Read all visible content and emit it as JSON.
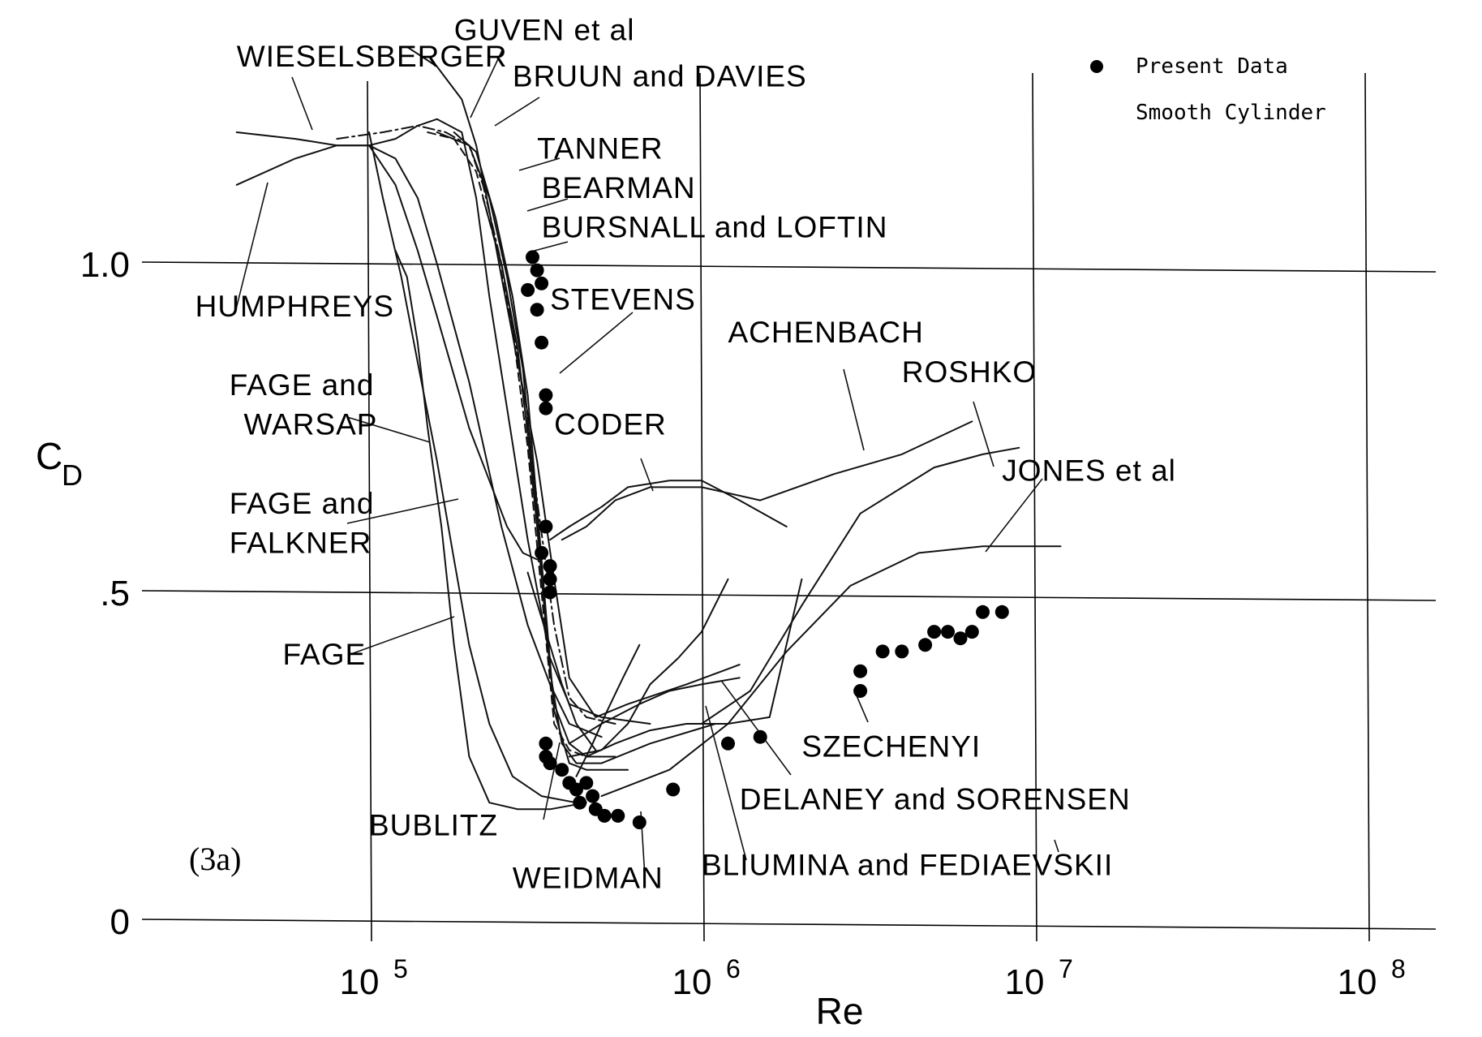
{
  "chart_data": {
    "type": "line",
    "figure_tag": "(3a)",
    "xlabel": "Re",
    "ylabel": "C",
    "ylabel_sub": "D",
    "x_scale": "log",
    "xlim": [
      13000,
      200000000
    ],
    "ylim": [
      -0.02,
      1.38
    ],
    "xticks": [
      {
        "value": 100000,
        "base": "10",
        "exp": "5"
      },
      {
        "value": 1000000,
        "base": "10",
        "exp": "6"
      },
      {
        "value": 10000000,
        "base": "10",
        "exp": "7"
      },
      {
        "value": 100000000,
        "base": "10",
        "exp": "8"
      }
    ],
    "yticks": [
      {
        "value": 0,
        "label": "0"
      },
      {
        "value": 0.5,
        "label": ".5"
      },
      {
        "value": 1.0,
        "label": "1.0"
      }
    ],
    "grid": true,
    "legend": {
      "placement": "top-right",
      "entries": [
        {
          "label": "Present Data",
          "marker": "filled-circle"
        },
        {
          "label": "Smooth Cylinder",
          "marker": "none"
        }
      ]
    },
    "present_data": {
      "x": [
        310000,
        320000,
        330000,
        300000,
        320000,
        330000,
        340000,
        340000,
        340000,
        330000,
        350000,
        350000,
        350000,
        340000,
        340000,
        350000,
        380000,
        400000,
        420000,
        450000,
        430000,
        470000,
        480000,
        510000,
        560000,
        650000,
        820000,
        1200000,
        1500000,
        3000000,
        3000000,
        3500000,
        4000000,
        4700000,
        5000000,
        5500000,
        6000000,
        6500000,
        7000000,
        8000000
      ],
      "y": [
        1.01,
        0.99,
        0.97,
        0.96,
        0.93,
        0.88,
        0.8,
        0.78,
        0.6,
        0.56,
        0.54,
        0.52,
        0.5,
        0.27,
        0.25,
        0.24,
        0.23,
        0.21,
        0.2,
        0.21,
        0.18,
        0.19,
        0.17,
        0.16,
        0.16,
        0.15,
        0.2,
        0.27,
        0.28,
        0.35,
        0.38,
        0.41,
        0.41,
        0.42,
        0.44,
        0.44,
        0.43,
        0.44,
        0.47,
        0.47
      ]
    },
    "series": [
      {
        "name": "WIESELSBERGER",
        "style": "solid",
        "x": [
          40000,
          60000,
          80000,
          100000,
          120000,
          140000,
          160000,
          190000,
          210000,
          230000,
          260000,
          300000,
          350000,
          400000,
          500000,
          700000
        ],
        "y": [
          1.2,
          1.19,
          1.18,
          1.18,
          1.19,
          1.21,
          1.22,
          1.2,
          1.1,
          0.95,
          0.78,
          0.58,
          0.4,
          0.33,
          0.31,
          0.3
        ]
      },
      {
        "name": "GUVEN et al",
        "style": "solid",
        "x": [
          130000,
          160000,
          190000,
          210000,
          230000,
          250000,
          280000,
          320000,
          360000,
          400000,
          480000,
          600000,
          900000,
          1300000
        ],
        "y": [
          1.33,
          1.3,
          1.25,
          1.18,
          1.08,
          0.98,
          0.85,
          0.7,
          0.52,
          0.37,
          0.31,
          0.33,
          0.36,
          0.39
        ]
      },
      {
        "name": "BRUUN and DAVIES",
        "style": "dashdot",
        "x": [
          80000,
          110000,
          140000,
          170000,
          200000,
          220000,
          250000,
          280000,
          320000,
          360000,
          400000,
          450000,
          550000
        ],
        "y": [
          1.19,
          1.2,
          1.21,
          1.2,
          1.18,
          1.12,
          1.0,
          0.86,
          0.64,
          0.45,
          0.34,
          0.31,
          0.3
        ]
      },
      {
        "name": "TANNER",
        "style": "dash",
        "x": [
          150000,
          180000,
          210000,
          240000,
          270000,
          300000,
          330000,
          360000,
          400000,
          450000
        ],
        "y": [
          1.2,
          1.19,
          1.14,
          1.03,
          0.9,
          0.72,
          0.5,
          0.3,
          0.26,
          0.25
        ]
      },
      {
        "name": "BEARMAN",
        "style": "solid",
        "x": [
          160000,
          200000,
          230000,
          260000,
          290000,
          320000,
          350000,
          380000,
          420000,
          500000,
          700000,
          1100000
        ],
        "y": [
          1.2,
          1.18,
          1.1,
          0.98,
          0.84,
          0.62,
          0.38,
          0.27,
          0.24,
          0.24,
          0.27,
          0.3
        ]
      },
      {
        "name": "BURSNALL and LOFTIN",
        "style": "solid",
        "x": [
          180000,
          210000,
          240000,
          270000,
          300000,
          330000,
          360000,
          400000,
          450000,
          600000
        ],
        "y": [
          1.2,
          1.17,
          1.07,
          0.95,
          0.8,
          0.55,
          0.32,
          0.24,
          0.23,
          0.23
        ]
      },
      {
        "name": "HUMPHREYS",
        "style": "solid",
        "x": [
          40000,
          60000,
          80000,
          100000,
          120000,
          140000,
          160000,
          200000,
          250000,
          300000,
          350000,
          400000,
          500000
        ],
        "y": [
          1.12,
          1.16,
          1.18,
          1.18,
          1.16,
          1.1,
          1.0,
          0.82,
          0.6,
          0.45,
          0.36,
          0.3,
          0.28
        ]
      },
      {
        "name": "STEVENS",
        "style": "solid",
        "x": [
          220000,
          250000,
          280000,
          300000,
          320000,
          340000,
          360000,
          400000,
          450000,
          550000
        ],
        "y": [
          1.1,
          1.0,
          0.87,
          0.74,
          0.6,
          0.45,
          0.33,
          0.27,
          0.25,
          0.25
        ]
      },
      {
        "name": "ACHENBACH",
        "style": "solid",
        "x": [
          380000,
          450000,
          550000,
          700000,
          1000000,
          1500000,
          2500000,
          4000000,
          6500000
        ],
        "y": [
          0.58,
          0.6,
          0.64,
          0.66,
          0.66,
          0.64,
          0.68,
          0.71,
          0.76
        ]
      },
      {
        "name": "CODER",
        "style": "solid",
        "x": [
          350000,
          400000,
          500000,
          600000,
          800000,
          1000000,
          1300000,
          1800000
        ],
        "y": [
          0.58,
          0.6,
          0.63,
          0.66,
          0.67,
          0.67,
          0.64,
          0.6
        ]
      },
      {
        "name": "ROSHKO",
        "style": "solid",
        "x": [
          1000000,
          1400000,
          2000000,
          3000000,
          5000000,
          7000000,
          9000000
        ],
        "y": [
          0.3,
          0.35,
          0.48,
          0.62,
          0.69,
          0.71,
          0.72
        ]
      },
      {
        "name": "JONES et al",
        "style": "solid",
        "x": [
          500000,
          800000,
          1200000,
          1800000,
          2800000,
          4500000,
          7000000,
          12000000
        ],
        "y": [
          0.19,
          0.23,
          0.3,
          0.41,
          0.51,
          0.56,
          0.57,
          0.57
        ]
      },
      {
        "name": "FAGE and WARSAP",
        "style": "solid",
        "x": [
          100000,
          120000,
          140000,
          160000,
          180000,
          200000,
          230000,
          260000,
          290000,
          320000
        ],
        "y": [
          1.18,
          1.12,
          1.02,
          0.92,
          0.83,
          0.75,
          0.67,
          0.6,
          0.56,
          0.55
        ]
      },
      {
        "name": "FAGE and FALKNER",
        "style": "solid",
        "x": [
          100000,
          110000,
          125000,
          140000,
          160000,
          180000,
          200000,
          230000,
          270000,
          330000,
          420000
        ],
        "y": [
          1.2,
          1.1,
          0.98,
          0.85,
          0.7,
          0.55,
          0.42,
          0.3,
          0.22,
          0.19,
          0.18
        ]
      },
      {
        "name": "FAGE",
        "style": "solid",
        "x": [
          120000,
          130000,
          140000,
          150000,
          165000,
          180000,
          200000,
          230000,
          280000,
          350000,
          450000
        ],
        "y": [
          1.02,
          0.98,
          0.88,
          0.75,
          0.6,
          0.42,
          0.25,
          0.18,
          0.17,
          0.17,
          0.18
        ]
      },
      {
        "name": "SZECHENYI",
        "style": "solid",
        "x": [
          400000,
          500000,
          600000,
          700000,
          850000,
          1000000,
          1200000
        ],
        "y": [
          0.25,
          0.26,
          0.3,
          0.36,
          0.4,
          0.44,
          0.52
        ]
      },
      {
        "name": "DELANEY and SORENSEN",
        "style": "solid",
        "x": [
          450000,
          550000,
          700000,
          900000,
          1200000,
          1600000,
          2000000
        ],
        "y": [
          0.25,
          0.27,
          0.29,
          0.3,
          0.3,
          0.31,
          0.52
        ]
      },
      {
        "name": "BLIUMINA and FEDIAEVSKII",
        "style": "solid",
        "x": [
          400000,
          500000,
          650000,
          800000,
          1000000,
          1300000
        ],
        "y": [
          0.27,
          0.3,
          0.33,
          0.35,
          0.36,
          0.37
        ]
      },
      {
        "name": "WEIDMAN",
        "style": "solid",
        "x": [
          420000,
          470000,
          520000,
          580000,
          650000
        ],
        "y": [
          0.22,
          0.27,
          0.32,
          0.37,
          0.42
        ]
      },
      {
        "name": "BUBLITZ",
        "style": "solid",
        "x": [
          300000,
          340000,
          380000,
          420000,
          480000
        ],
        "y": [
          0.53,
          0.44,
          0.36,
          0.3,
          0.26
        ]
      }
    ],
    "labels": [
      {
        "text": "WIESELSBERGER",
        "x": 40000,
        "y": 1.3
      },
      {
        "text": "GUVEN et al",
        "x": 180000,
        "y": 1.34
      },
      {
        "text": "BRUUN and DAVIES",
        "x": 270000,
        "y": 1.27
      },
      {
        "text": "TANNER",
        "x": 320000,
        "y": 1.16
      },
      {
        "text": "BEARMAN",
        "x": 330000,
        "y": 1.1
      },
      {
        "text": "BURSNALL and LOFTIN",
        "x": 330000,
        "y": 1.04
      },
      {
        "text": "HUMPHREYS",
        "x": 30000,
        "y": 0.92
      },
      {
        "text": "STEVENS",
        "x": 350000,
        "y": 0.93
      },
      {
        "text": "ACHENBACH",
        "x": 1200000,
        "y": 0.88
      },
      {
        "text": "ROSHKO",
        "x": 4000000,
        "y": 0.82
      },
      {
        "text": "FAGE and",
        "x": 38000,
        "y": 0.8
      },
      {
        "text": "WARSAP",
        "x": 42000,
        "y": 0.74
      },
      {
        "text": "CODER",
        "x": 360000,
        "y": 0.74
      },
      {
        "text": "JONES et al",
        "x": 8000000,
        "y": 0.67
      },
      {
        "text": "FAGE and",
        "x": 38000,
        "y": 0.62
      },
      {
        "text": "FALKNER",
        "x": 38000,
        "y": 0.56
      },
      {
        "text": "FAGE",
        "x": 55000,
        "y": 0.39
      },
      {
        "text": "SZECHENYI",
        "x": 2000000,
        "y": 0.25
      },
      {
        "text": "DELANEY and SORENSEN",
        "x": 1300000,
        "y": 0.17
      },
      {
        "text": "BUBLITZ",
        "x": 100000,
        "y": 0.13
      },
      {
        "text": "BLIUMINA and FEDIAEVSKII",
        "x": 1000000,
        "y": 0.07
      },
      {
        "text": "WEIDMAN",
        "x": 270000,
        "y": 0.05
      }
    ]
  }
}
